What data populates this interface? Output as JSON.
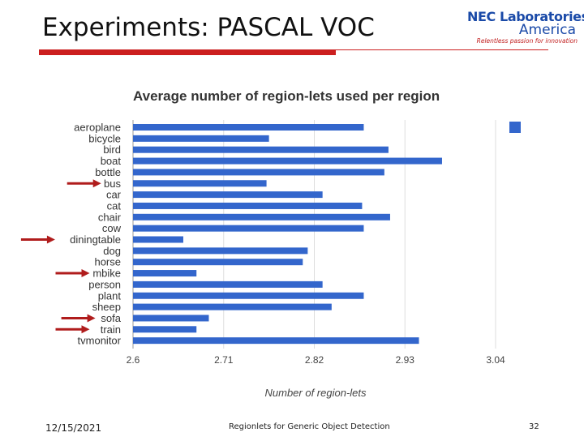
{
  "slide": {
    "title": "Experiments: PASCAL VOC",
    "logo": {
      "line1": "NEC Laboratories",
      "line2": "America",
      "line3": "Relentless passion for innovation"
    },
    "footer": {
      "date": "12/15/2021",
      "center": "Regionlets for Generic Object Detection",
      "page": "32"
    },
    "colors": {
      "accent_red": "#cc1f1f",
      "bar_blue": "#3366cc",
      "logo_blue": "#1a4aa8",
      "arrow_red": "#b01c1c"
    }
  },
  "chart_data": {
    "type": "bar",
    "orientation": "horizontal",
    "title": "Average number of region-lets used per region",
    "xlabel": "Number of region-lets",
    "ylabel": "",
    "xlim": [
      2.6,
      3.04
    ],
    "xticks": [
      "2.6",
      "2.71",
      "2.82",
      "2.93",
      "3.04"
    ],
    "grid": true,
    "legend": "top-right",
    "categories": [
      "aeroplane",
      "bicycle",
      "bird",
      "boat",
      "bottle",
      "bus",
      "car",
      "cat",
      "chair",
      "cow",
      "diningtable",
      "dog",
      "horse",
      "mbike",
      "person",
      "plant",
      "sheep",
      "sofa",
      "train",
      "tvmonitor"
    ],
    "values": [
      2.88,
      2.765,
      2.91,
      2.975,
      2.905,
      2.762,
      2.83,
      2.878,
      2.912,
      2.88,
      2.661,
      2.812,
      2.806,
      2.677,
      2.83,
      2.88,
      2.841,
      2.692,
      2.677,
      2.947
    ],
    "highlighted_categories": [
      "bus",
      "diningtable",
      "mbike",
      "sofa",
      "train"
    ]
  }
}
